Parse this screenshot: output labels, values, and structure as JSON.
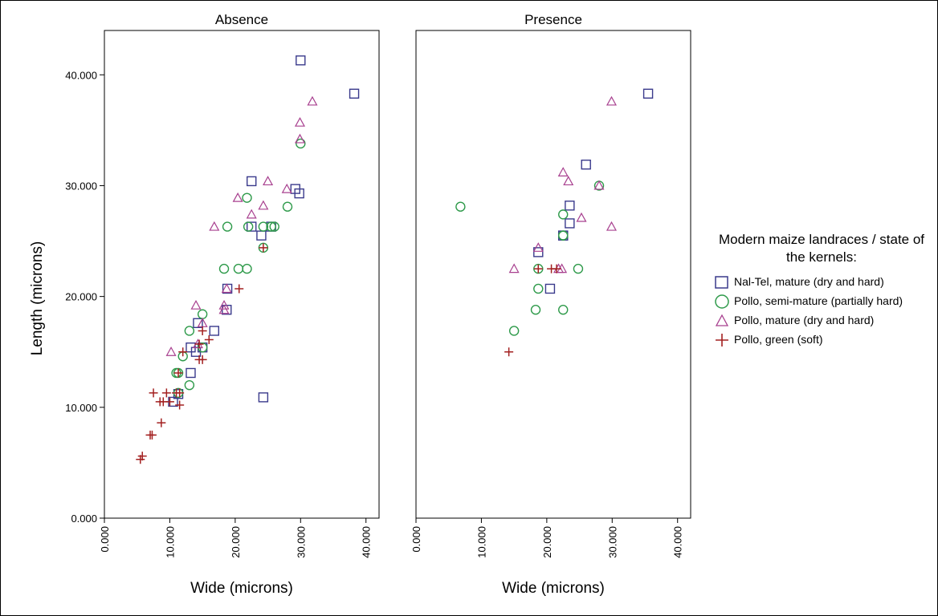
{
  "chart_data": {
    "type": "scatter",
    "xlabel": "Wide (microns)",
    "ylabel": "Length (microns)",
    "xlim": [
      0,
      42
    ],
    "ylim": [
      0,
      44
    ],
    "x_ticks": [
      0,
      10,
      20,
      30,
      40
    ],
    "y_ticks": [
      0,
      10,
      20,
      30,
      40
    ],
    "x_tick_labels": [
      "0.000",
      "10.000",
      "20.000",
      "30.000",
      "40.000"
    ],
    "y_tick_labels": [
      "0.000",
      "10.000",
      "20.000",
      "30.000",
      "40.000"
    ],
    "grid": false,
    "legend_position": "right",
    "legend_title": "Modern maize landraces / state of the kernels:",
    "series_defs": [
      {
        "name": "Nal-Tel, mature (dry and hard)",
        "marker": "square",
        "color": "#3a3a8c"
      },
      {
        "name": "Pollo, semi-mature (partially hard)",
        "marker": "circle",
        "color": "#2e9a4a"
      },
      {
        "name": "Pollo, mature (dry and hard)",
        "marker": "triangle",
        "color": "#a8408f"
      },
      {
        "name": "Pollo, green (soft)",
        "marker": "plus",
        "color": "#a32020"
      }
    ],
    "panels": [
      {
        "title": "Absence",
        "series": [
          {
            "x": [
              30.0,
              38.2,
              22.5,
              29.8,
              29.2,
              22.5,
              24.0,
              25.5,
              18.8,
              18.7,
              16.8,
              14.3,
              13.2,
              15.0,
              14.0,
              13.2,
              11.3,
              10.5,
              24.3
            ],
            "y": [
              41.3,
              38.3,
              30.4,
              29.3,
              29.7,
              26.3,
              25.5,
              26.3,
              20.7,
              18.8,
              16.9,
              17.6,
              15.4,
              15.4,
              15.0,
              13.1,
              11.2,
              10.5,
              10.9
            ]
          },
          {
            "x": [
              30.0,
              21.8,
              18.8,
              28.0,
              24.3,
              25.5,
              26.0,
              22.0,
              18.3,
              20.5,
              21.8,
              24.3,
              15.0,
              13.0,
              12.0,
              15.0,
              11.0,
              11.3,
              13.0,
              11.3
            ],
            "y": [
              33.8,
              28.9,
              26.3,
              28.1,
              26.3,
              26.3,
              26.3,
              26.3,
              22.5,
              22.5,
              22.5,
              24.4,
              18.4,
              16.9,
              14.6,
              15.4,
              13.1,
              13.1,
              12.0,
              11.3
            ],
            "_": ""
          },
          {
            "x": [
              31.8,
              29.9,
              29.9,
              25.0,
              27.9,
              20.4,
              24.3,
              22.5,
              16.8,
              18.3,
              18.3,
              18.7,
              14.0,
              10.2,
              14.3,
              15.0
            ],
            "y": [
              37.6,
              35.7,
              34.2,
              30.4,
              29.7,
              28.9,
              28.2,
              27.4,
              26.3,
              19.2,
              18.8,
              20.7,
              19.2,
              15.0,
              15.7,
              17.6
            ]
          },
          {
            "x": [
              24.3,
              20.6,
              15.0,
              16.0,
              12.0,
              14.5,
              14.5,
              15.0,
              11.3,
              11.0,
              11.5,
              9.5,
              7.5,
              8.5,
              9.0,
              10.0,
              11.5,
              8.7,
              7.3,
              7.0,
              5.8,
              5.5
            ],
            "y": [
              24.4,
              20.7,
              16.9,
              16.1,
              15.0,
              15.7,
              14.3,
              14.3,
              13.1,
              11.3,
              11.3,
              11.3,
              11.3,
              10.5,
              10.5,
              10.5,
              10.2,
              8.6,
              7.5,
              7.5,
              5.6,
              5.3
            ]
          }
        ]
      },
      {
        "title": "Presence",
        "series": [
          {
            "x": [
              35.5,
              26.0,
              23.5,
              23.5,
              22.5,
              22.5,
              18.7,
              20.5
            ],
            "y": [
              38.3,
              31.9,
              28.2,
              26.6,
              25.5,
              25.5,
              24.0,
              20.7
            ]
          },
          {
            "x": [
              6.8,
              22.5,
              28.0,
              22.5,
              22.5,
              18.7,
              24.8,
              18.7,
              18.3,
              22.5,
              15.0
            ],
            "y": [
              28.1,
              27.4,
              30.0,
              25.5,
              25.5,
              22.5,
              22.5,
              20.7,
              18.8,
              18.8,
              16.9
            ]
          },
          {
            "x": [
              29.9,
              22.5,
              23.3,
              28.0,
              25.3,
              29.9,
              18.7,
              15.0,
              21.8,
              22.3
            ],
            "y": [
              37.6,
              31.2,
              30.4,
              30.0,
              27.1,
              26.3,
              24.4,
              22.5,
              22.5,
              22.5
            ]
          },
          {
            "x": [
              18.7,
              20.7,
              21.5,
              14.2
            ],
            "y": [
              22.5,
              22.5,
              22.5,
              15.0
            ]
          }
        ]
      }
    ]
  }
}
